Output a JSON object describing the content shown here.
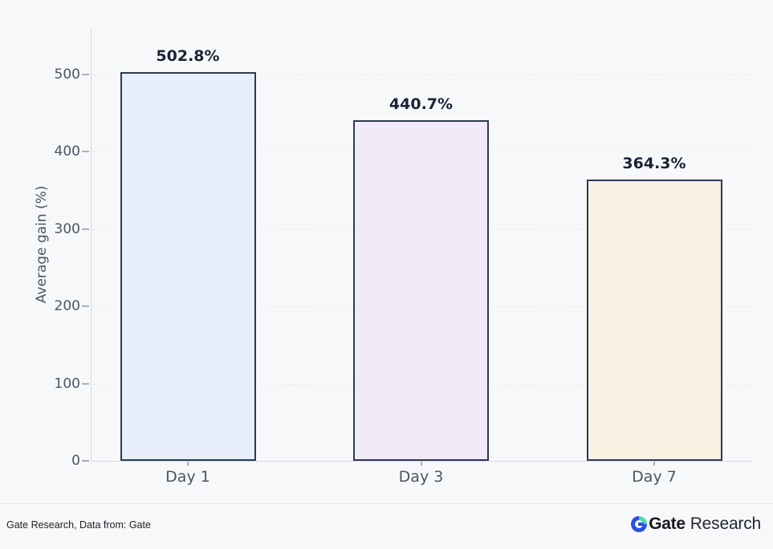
{
  "chart_data": {
    "type": "bar",
    "categories": [
      "Day 1",
      "Day 3",
      "Day 7"
    ],
    "values": [
      502.8,
      440.7,
      364.3
    ],
    "value_labels": [
      "502.8%",
      "440.7%",
      "364.3%"
    ],
    "bar_colors": [
      "#e8eef9",
      "#f1eaf8",
      "#faf0e1"
    ],
    "bar_border_color": "#2e3a52",
    "title": "",
    "xlabel": "",
    "ylabel": "Average gain (%)",
    "ylim": [
      0,
      560
    ],
    "yticks": [
      0,
      100,
      200,
      300,
      400,
      500
    ],
    "grid": "horizontal-dashed",
    "legend": "none"
  },
  "footer": {
    "source_text": "Gate Research, Data from: Gate",
    "logo": {
      "brand": "Gate",
      "suffix": "Research"
    },
    "logo_colors": {
      "blue": "#2b4ee8",
      "green": "#3fe3a5"
    }
  }
}
